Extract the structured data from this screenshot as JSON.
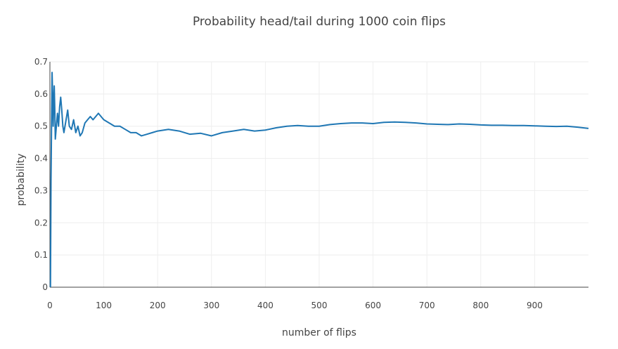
{
  "chart_data": {
    "type": "line",
    "title": "Probability head/tail during 1000 coin flips",
    "xlabel": "number of flips",
    "ylabel": "probability",
    "xlim": [
      0,
      1000
    ],
    "ylim": [
      0,
      0.7
    ],
    "x_ticks": [
      0,
      100,
      200,
      300,
      400,
      500,
      600,
      700,
      800,
      900
    ],
    "x_tick_labels": [
      "0",
      "100",
      "200",
      "300",
      "400",
      "500",
      "600",
      "700",
      "800",
      "900"
    ],
    "y_ticks": [
      0,
      0.1,
      0.2,
      0.3,
      0.4,
      0.5,
      0.6,
      0.7
    ],
    "y_tick_labels": [
      "0",
      "0.1",
      "0.2",
      "0.3",
      "0.4",
      "0.5",
      "0.6",
      "0.7"
    ],
    "grid": true,
    "series": [
      {
        "name": "probability",
        "color": "#1f77b4",
        "x": [
          1,
          2,
          3,
          4,
          5,
          6,
          7,
          8,
          9,
          10,
          12,
          14,
          16,
          18,
          20,
          22,
          24,
          26,
          28,
          30,
          33,
          36,
          40,
          44,
          48,
          52,
          56,
          60,
          65,
          70,
          75,
          80,
          85,
          90,
          95,
          100,
          110,
          120,
          130,
          140,
          150,
          160,
          170,
          180,
          190,
          200,
          220,
          240,
          260,
          280,
          300,
          320,
          340,
          360,
          380,
          400,
          420,
          440,
          460,
          480,
          500,
          520,
          540,
          560,
          580,
          600,
          620,
          640,
          660,
          680,
          700,
          720,
          740,
          760,
          780,
          800,
          820,
          840,
          860,
          880,
          900,
          920,
          940,
          960,
          980,
          1000
        ],
        "values": [
          0.0,
          0.33,
          0.5,
          0.667,
          0.6,
          0.5,
          0.571,
          0.625,
          0.556,
          0.46,
          0.5,
          0.54,
          0.5,
          0.56,
          0.59,
          0.55,
          0.5,
          0.48,
          0.5,
          0.52,
          0.55,
          0.5,
          0.49,
          0.52,
          0.48,
          0.5,
          0.47,
          0.48,
          0.51,
          0.52,
          0.53,
          0.52,
          0.53,
          0.54,
          0.53,
          0.52,
          0.51,
          0.5,
          0.5,
          0.49,
          0.48,
          0.48,
          0.47,
          0.475,
          0.48,
          0.485,
          0.49,
          0.485,
          0.475,
          0.478,
          0.47,
          0.48,
          0.485,
          0.49,
          0.485,
          0.488,
          0.495,
          0.5,
          0.502,
          0.5,
          0.5,
          0.505,
          0.508,
          0.51,
          0.51,
          0.508,
          0.512,
          0.513,
          0.512,
          0.51,
          0.507,
          0.506,
          0.505,
          0.507,
          0.506,
          0.504,
          0.503,
          0.503,
          0.502,
          0.502,
          0.501,
          0.5,
          0.499,
          0.5,
          0.497,
          0.493
        ]
      }
    ]
  }
}
